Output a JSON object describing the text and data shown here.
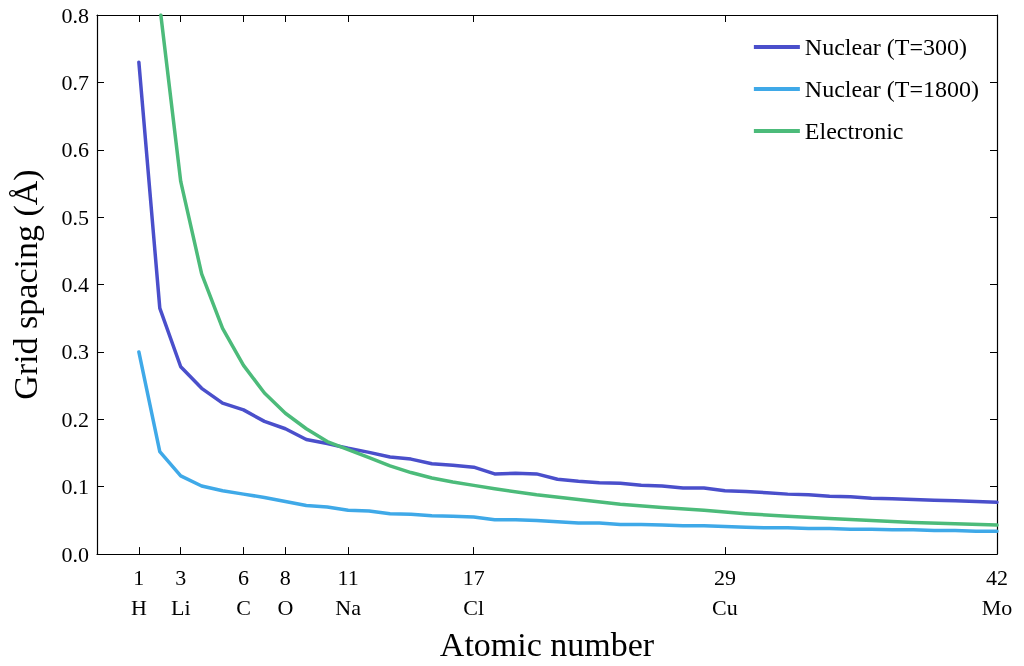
{
  "chart_data": {
    "type": "line",
    "xlabel": "Atomic number",
    "ylabel": "Grid spacing (Å)",
    "xlim": [
      -1,
      42
    ],
    "ylim": [
      0,
      0.8
    ],
    "xticks": [
      {
        "value": 1,
        "label": "1\nH"
      },
      {
        "value": 3,
        "label": "3\nLi"
      },
      {
        "value": 6,
        "label": "6\nC"
      },
      {
        "value": 8,
        "label": "8\nO"
      },
      {
        "value": 11,
        "label": "11\nNa"
      },
      {
        "value": 17,
        "label": "17\nCl"
      },
      {
        "value": 29,
        "label": "29\nCu"
      },
      {
        "value": 42,
        "label": "42\nMo"
      }
    ],
    "yticks": [
      {
        "value": 0,
        "label": "0.0"
      },
      {
        "value": 0.1,
        "label": "0.1"
      },
      {
        "value": 0.2,
        "label": "0.2"
      },
      {
        "value": 0.3,
        "label": "0.3"
      },
      {
        "value": 0.4,
        "label": "0.4"
      },
      {
        "value": 0.5,
        "label": "0.5"
      },
      {
        "value": 0.6,
        "label": "0.6"
      },
      {
        "value": 0.7,
        "label": "0.7"
      },
      {
        "value": 0.8,
        "label": "0.8"
      }
    ],
    "grid": false,
    "legend": "top right",
    "marker": "none",
    "line_style": "solid",
    "x": [
      1,
      2,
      3,
      4,
      5,
      6,
      7,
      8,
      9,
      10,
      11,
      12,
      13,
      14,
      15,
      16,
      17,
      18,
      19,
      20,
      21,
      22,
      23,
      24,
      25,
      26,
      27,
      28,
      29,
      30,
      31,
      32,
      33,
      34,
      35,
      36,
      37,
      38,
      39,
      40,
      41,
      42
    ],
    "series": [
      {
        "name": "Nuclear (T=300)",
        "color": "#4a4fcb",
        "values": [
          0.73,
          0.365,
          0.278,
          0.246,
          0.224,
          0.214,
          0.197,
          0.186,
          0.17,
          0.164,
          0.157,
          0.151,
          0.144,
          0.141,
          0.134,
          0.132,
          0.129,
          0.119,
          0.12,
          0.119,
          0.111,
          0.108,
          0.106,
          0.105,
          0.102,
          0.101,
          0.098,
          0.098,
          0.094,
          0.093,
          0.091,
          0.089,
          0.088,
          0.086,
          0.085,
          0.083,
          0.082,
          0.081,
          0.08,
          0.079,
          0.078,
          0.077
        ]
      },
      {
        "name": "Nuclear (T=1800)",
        "color": "#3fa9e8",
        "values": [
          0.3,
          0.152,
          0.116,
          0.101,
          0.094,
          0.089,
          0.084,
          0.078,
          0.072,
          0.07,
          0.065,
          0.064,
          0.06,
          0.059,
          0.057,
          0.056,
          0.055,
          0.051,
          0.051,
          0.05,
          0.048,
          0.046,
          0.046,
          0.044,
          0.044,
          0.043,
          0.042,
          0.042,
          0.041,
          0.04,
          0.039,
          0.039,
          0.038,
          0.038,
          0.037,
          0.037,
          0.036,
          0.036,
          0.035,
          0.035,
          0.034,
          0.034
        ]
      },
      {
        "name": "Electronic",
        "color": "#4cbb7a",
        "x": [
          2.05,
          3,
          4,
          5,
          6,
          7,
          8,
          9,
          10,
          11,
          12,
          13,
          14,
          15,
          16,
          17,
          18,
          20,
          22,
          24,
          26,
          28,
          30,
          32,
          34,
          36,
          38,
          40,
          42
        ],
        "values": [
          0.8,
          0.553,
          0.416,
          0.335,
          0.28,
          0.239,
          0.209,
          0.186,
          0.167,
          0.155,
          0.143,
          0.131,
          0.121,
          0.113,
          0.107,
          0.102,
          0.097,
          0.088,
          0.081,
          0.074,
          0.069,
          0.065,
          0.06,
          0.056,
          0.053,
          0.05,
          0.047,
          0.045,
          0.043
        ]
      }
    ]
  }
}
